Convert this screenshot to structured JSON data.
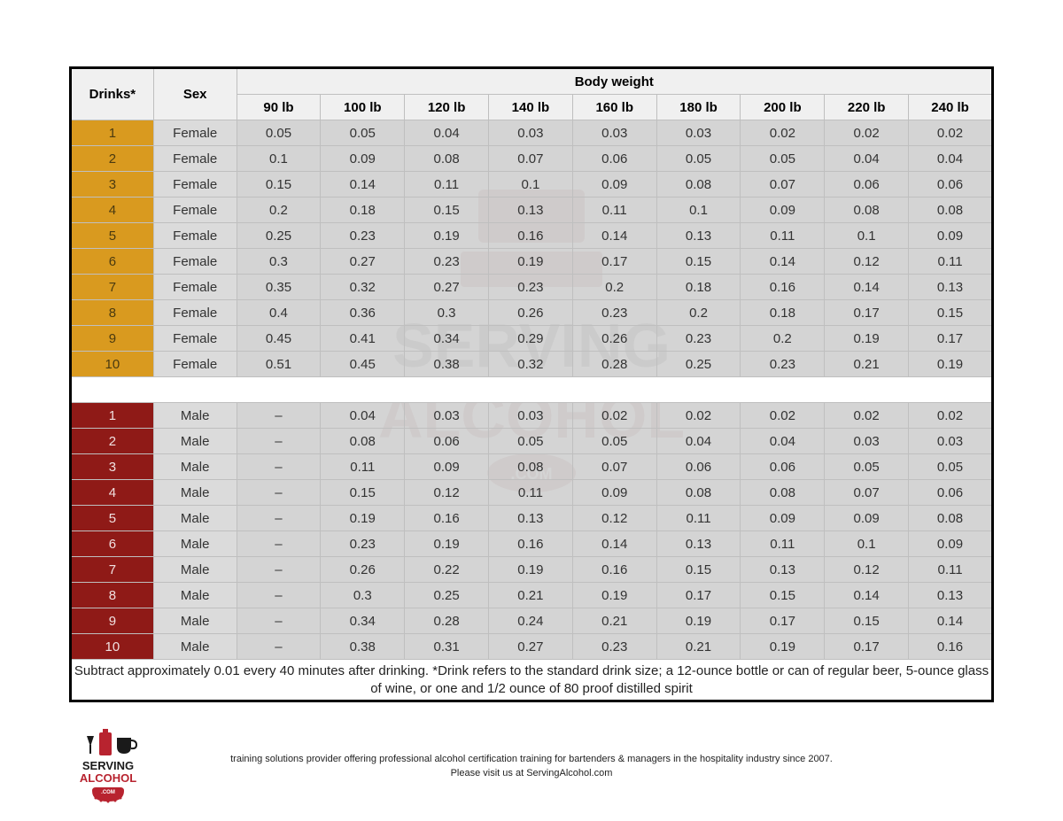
{
  "table": {
    "header": {
      "drinks": "Drinks*",
      "sex": "Sex",
      "bodyweight_group": "Body weight",
      "weights": [
        "90 lb",
        "100 lb",
        "120 lb",
        "140 lb",
        "160 lb",
        "180 lb",
        "200 lb",
        "220 lb",
        "240 lb"
      ]
    },
    "female_rows": [
      {
        "drinks": "1",
        "sex": "Female",
        "vals": [
          "0.05",
          "0.05",
          "0.04",
          "0.03",
          "0.03",
          "0.03",
          "0.02",
          "0.02",
          "0.02"
        ]
      },
      {
        "drinks": "2",
        "sex": "Female",
        "vals": [
          "0.1",
          "0.09",
          "0.08",
          "0.07",
          "0.06",
          "0.05",
          "0.05",
          "0.04",
          "0.04"
        ]
      },
      {
        "drinks": "3",
        "sex": "Female",
        "vals": [
          "0.15",
          "0.14",
          "0.11",
          "0.1",
          "0.09",
          "0.08",
          "0.07",
          "0.06",
          "0.06"
        ]
      },
      {
        "drinks": "4",
        "sex": "Female",
        "vals": [
          "0.2",
          "0.18",
          "0.15",
          "0.13",
          "0.11",
          "0.1",
          "0.09",
          "0.08",
          "0.08"
        ]
      },
      {
        "drinks": "5",
        "sex": "Female",
        "vals": [
          "0.25",
          "0.23",
          "0.19",
          "0.16",
          "0.14",
          "0.13",
          "0.11",
          "0.1",
          "0.09"
        ]
      },
      {
        "drinks": "6",
        "sex": "Female",
        "vals": [
          "0.3",
          "0.27",
          "0.23",
          "0.19",
          "0.17",
          "0.15",
          "0.14",
          "0.12",
          "0.11"
        ]
      },
      {
        "drinks": "7",
        "sex": "Female",
        "vals": [
          "0.35",
          "0.32",
          "0.27",
          "0.23",
          "0.2",
          "0.18",
          "0.16",
          "0.14",
          "0.13"
        ]
      },
      {
        "drinks": "8",
        "sex": "Female",
        "vals": [
          "0.4",
          "0.36",
          "0.3",
          "0.26",
          "0.23",
          "0.2",
          "0.18",
          "0.17",
          "0.15"
        ]
      },
      {
        "drinks": "9",
        "sex": "Female",
        "vals": [
          "0.45",
          "0.41",
          "0.34",
          "0.29",
          "0.26",
          "0.23",
          "0.2",
          "0.19",
          "0.17"
        ]
      },
      {
        "drinks": "10",
        "sex": "Female",
        "vals": [
          "0.51",
          "0.45",
          "0.38",
          "0.32",
          "0.28",
          "0.25",
          "0.23",
          "0.21",
          "0.19"
        ]
      }
    ],
    "male_rows": [
      {
        "drinks": "1",
        "sex": "Male",
        "vals": [
          "–",
          "0.04",
          "0.03",
          "0.03",
          "0.02",
          "0.02",
          "0.02",
          "0.02",
          "0.02"
        ]
      },
      {
        "drinks": "2",
        "sex": "Male",
        "vals": [
          "–",
          "0.08",
          "0.06",
          "0.05",
          "0.05",
          "0.04",
          "0.04",
          "0.03",
          "0.03"
        ]
      },
      {
        "drinks": "3",
        "sex": "Male",
        "vals": [
          "–",
          "0.11",
          "0.09",
          "0.08",
          "0.07",
          "0.06",
          "0.06",
          "0.05",
          "0.05"
        ]
      },
      {
        "drinks": "4",
        "sex": "Male",
        "vals": [
          "–",
          "0.15",
          "0.12",
          "0.11",
          "0.09",
          "0.08",
          "0.08",
          "0.07",
          "0.06"
        ]
      },
      {
        "drinks": "5",
        "sex": "Male",
        "vals": [
          "–",
          "0.19",
          "0.16",
          "0.13",
          "0.12",
          "0.11",
          "0.09",
          "0.09",
          "0.08"
        ]
      },
      {
        "drinks": "6",
        "sex": "Male",
        "vals": [
          "–",
          "0.23",
          "0.19",
          "0.16",
          "0.14",
          "0.13",
          "0.11",
          "0.1",
          "0.09"
        ]
      },
      {
        "drinks": "7",
        "sex": "Male",
        "vals": [
          "–",
          "0.26",
          "0.22",
          "0.19",
          "0.16",
          "0.15",
          "0.13",
          "0.12",
          "0.11"
        ]
      },
      {
        "drinks": "8",
        "sex": "Male",
        "vals": [
          "–",
          "0.3",
          "0.25",
          "0.21",
          "0.19",
          "0.17",
          "0.15",
          "0.14",
          "0.13"
        ]
      },
      {
        "drinks": "9",
        "sex": "Male",
        "vals": [
          "–",
          "0.34",
          "0.28",
          "0.24",
          "0.21",
          "0.19",
          "0.17",
          "0.15",
          "0.14"
        ]
      },
      {
        "drinks": "10",
        "sex": "Male",
        "vals": [
          "–",
          "0.38",
          "0.31",
          "0.27",
          "0.23",
          "0.21",
          "0.19",
          "0.17",
          "0.16"
        ]
      }
    ],
    "footnote": "Subtract approximately 0.01 every 40 minutes after drinking. *Drink refers to the standard drink size; a 12-ounce bottle or can of regular beer, 5-ounce glass of wine, or one and 1/2 ounce of 80 proof distilled spirit"
  },
  "footer": {
    "text1": "training solutions provider offering professional alcohol certification training for bartenders & managers in the hospitality industry since 2007.",
    "text2": "Please visit us at ServingAlcohol.com"
  },
  "colors": {
    "female_drinks_bg": "#d99a1f",
    "male_drinks_bg": "#8f1a17",
    "header_bg": "#f0f0f0",
    "cell_overlay": "rgba(170,170,170,0.50)",
    "sex_overlay": "rgba(190,190,190,0.55)",
    "border": "#bfbfbf",
    "outer_border": "#000000",
    "logo_red": "#b8232f",
    "logo_black": "#1a1a1a"
  },
  "column_widths_percent": [
    9,
    9,
    9.1,
    9.1,
    9.1,
    9.1,
    9.1,
    9.1,
    9.1,
    9.1,
    9.1
  ]
}
